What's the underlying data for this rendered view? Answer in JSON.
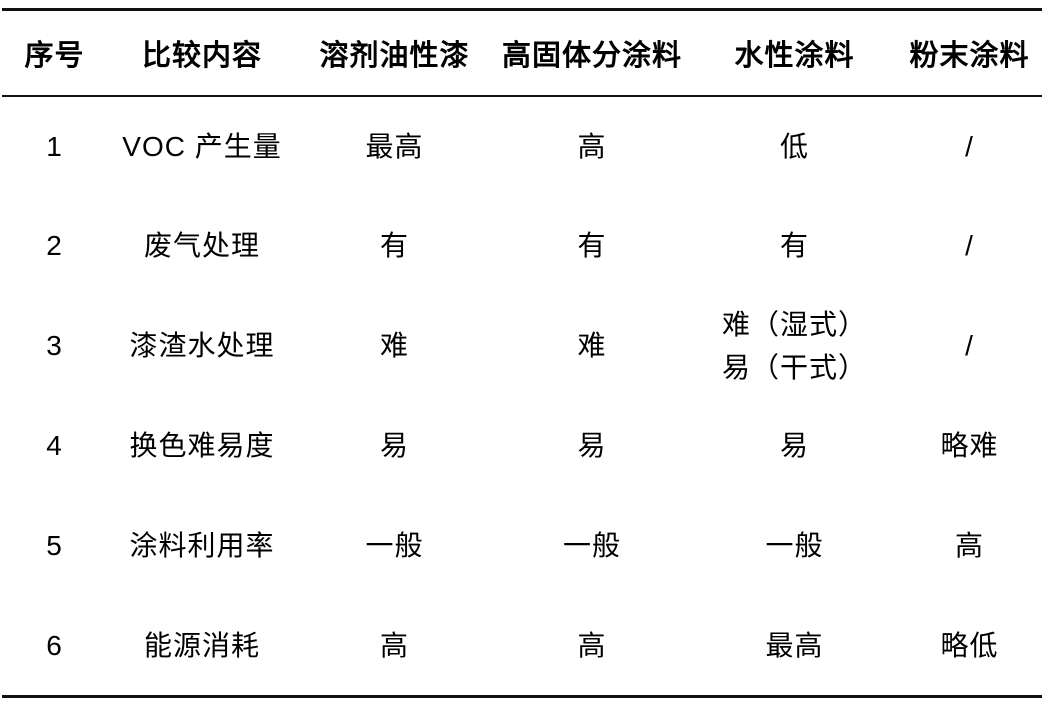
{
  "table": {
    "headers": [
      "序号",
      "比较内容",
      "溶剂油性漆",
      "高固体分涂料",
      "水性涂料",
      "粉末涂料"
    ],
    "rows": [
      [
        "1",
        "VOC 产生量",
        "最高",
        "高",
        "低",
        "/"
      ],
      [
        "2",
        "废气处理",
        "有",
        "有",
        "有",
        "/"
      ],
      [
        "3",
        "漆渣水处理",
        "难",
        "难",
        "难（湿式）\n易（干式）",
        "/"
      ],
      [
        "4",
        "换色难易度",
        "易",
        "易",
        "易",
        "略难"
      ],
      [
        "5",
        "涂料利用率",
        "一般",
        "一般",
        "一般",
        "高"
      ],
      [
        "6",
        "能源消耗",
        "高",
        "高",
        "最高",
        "略低"
      ]
    ],
    "colors": {
      "text": "#000000",
      "rule": "#111111",
      "background": "#ffffff"
    }
  }
}
